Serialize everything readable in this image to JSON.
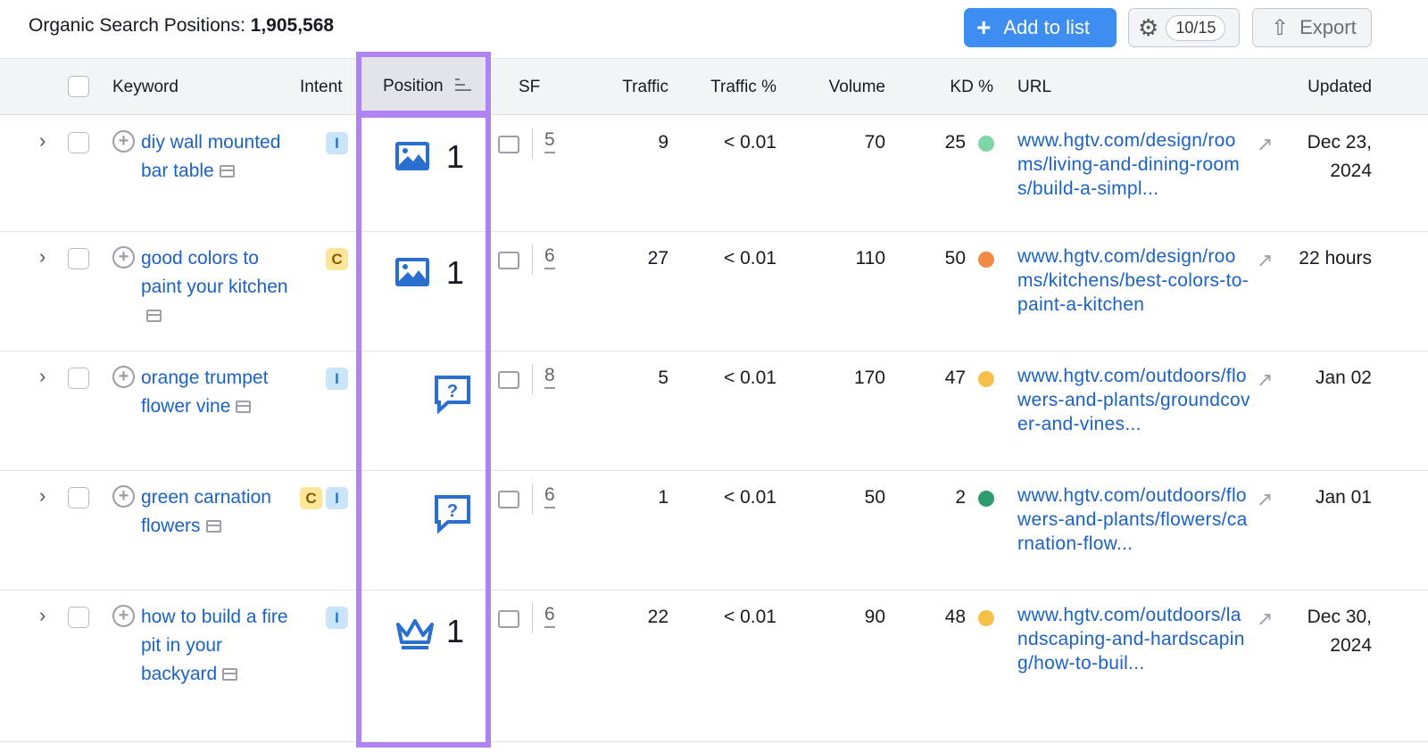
{
  "header": {
    "title_label": "Organic Search Positions:",
    "title_count": "1,905,568",
    "add_to_list": "Add to list",
    "columns_count": "10/15",
    "export": "Export"
  },
  "columns": {
    "keyword": "Keyword",
    "intent": "Intent",
    "position": "Position",
    "sf": "SF",
    "traffic": "Traffic",
    "traffic_pct": "Traffic %",
    "volume": "Volume",
    "kd": "KD %",
    "url": "URL",
    "updated": "Updated"
  },
  "colors": {
    "accent": "#3d8ef0",
    "highlight": "#b083f3",
    "kd_easy": "#7fd6a5",
    "kd_hard": "#f08a45",
    "kd_mid": "#f5c04a",
    "kd_veryeasy": "#2f9b6e"
  },
  "rows": [
    {
      "keyword": "diy wall mounted bar table",
      "intents": [
        "I"
      ],
      "position_icon": "image-icon",
      "position": "1",
      "sf": "5",
      "traffic": "9",
      "traffic_pct": "< 0.01",
      "volume": "70",
      "kd": "25",
      "kd_color": "#7fd6a5",
      "url": "www.hgtv.com/design/rooms/living-and-dining-rooms/build-a-simpl...",
      "updated": "Dec 23, 2024"
    },
    {
      "keyword": "good colors to paint your kitchen",
      "intents": [
        "C"
      ],
      "position_icon": "image-icon",
      "position": "1",
      "sf": "6",
      "traffic": "27",
      "traffic_pct": "< 0.01",
      "volume": "110",
      "kd": "50",
      "kd_color": "#f08a45",
      "url": "www.hgtv.com/design/rooms/kitchens/best-colors-to-paint-a-kitchen",
      "updated": "22 hours"
    },
    {
      "keyword": "orange trumpet flower vine",
      "intents": [
        "I"
      ],
      "position_icon": "people-also-ask-icon",
      "position": "",
      "sf": "8",
      "traffic": "5",
      "traffic_pct": "< 0.01",
      "volume": "170",
      "kd": "47",
      "kd_color": "#f5c04a",
      "url": "www.hgtv.com/outdoors/flowers-and-plants/groundcover-and-vines...",
      "updated": "Jan 02"
    },
    {
      "keyword": "green carnation flowers",
      "intents": [
        "C",
        "I"
      ],
      "position_icon": "people-also-ask-icon",
      "position": "",
      "sf": "6",
      "traffic": "1",
      "traffic_pct": "< 0.01",
      "volume": "50",
      "kd": "2",
      "kd_color": "#2f9b6e",
      "url": "www.hgtv.com/outdoors/flowers-and-plants/flowers/carnation-flow...",
      "updated": "Jan 01"
    },
    {
      "keyword": "how to build a fire pit in your backyard",
      "intents": [
        "I"
      ],
      "position_icon": "crown-icon",
      "position": "1",
      "sf": "6",
      "traffic": "22",
      "traffic_pct": "< 0.01",
      "volume": "90",
      "kd": "48",
      "kd_color": "#f5c04a",
      "url": "www.hgtv.com/outdoors/landscaping-and-hardscaping/how-to-buil...",
      "updated": "Dec 30, 2024"
    }
  ]
}
